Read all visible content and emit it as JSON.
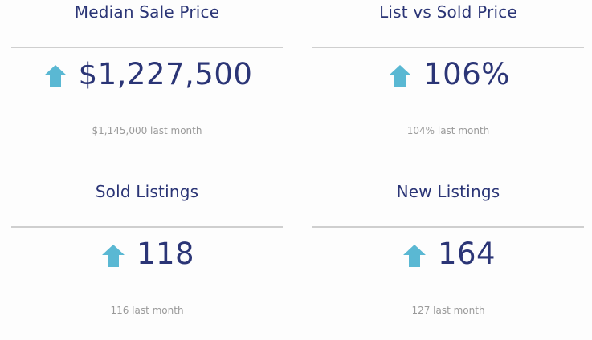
{
  "colors": {
    "accent_arrow": "#5ab8d3",
    "title_text": "#2b3576",
    "sub_text": "#9a9a9a",
    "divider": "#cfcfcf"
  },
  "cards": [
    {
      "title": "Median Sale Price",
      "trend_icon": "arrow-up-icon",
      "value": "$1,227,500",
      "previous": "$1,145,000 last month"
    },
    {
      "title": "List vs Sold Price",
      "trend_icon": "arrow-up-icon",
      "value": "106%",
      "previous": "104% last month"
    },
    {
      "title": "Sold Listings",
      "trend_icon": "arrow-up-icon",
      "value": "118",
      "previous": "116 last month"
    },
    {
      "title": "New Listings",
      "trend_icon": "arrow-up-icon",
      "value": "164",
      "previous": "127 last month"
    }
  ]
}
